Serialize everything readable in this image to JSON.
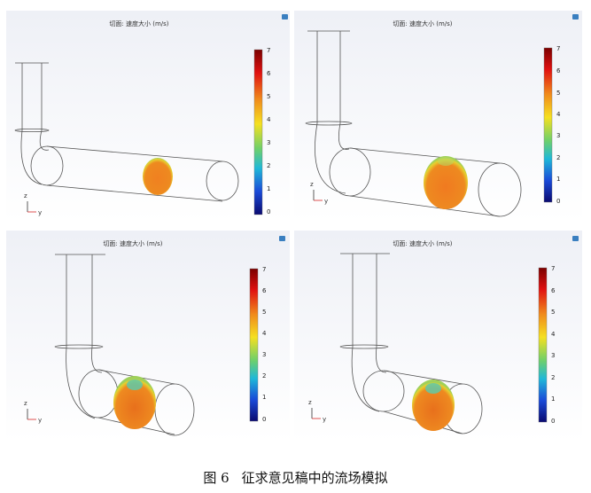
{
  "figure": {
    "caption_label": "图 6",
    "caption_text": "征求意见稿中的流场模拟"
  },
  "panels": [
    {
      "title": "切面: 速度大小 (m/s)",
      "colorbar_ticks": [
        "7",
        "6",
        "5",
        "4",
        "3",
        "2",
        "1",
        "0"
      ],
      "axis_z": "z",
      "axis_y": "y"
    },
    {
      "title": "切面: 速度大小 (m/s)",
      "colorbar_ticks": [
        "7",
        "6",
        "5",
        "4",
        "3",
        "2",
        "1",
        "0"
      ],
      "axis_z": "z",
      "axis_y": "y"
    },
    {
      "title": "切面: 速度大小 (m/s)",
      "colorbar_ticks": [
        "7",
        "6",
        "5",
        "4",
        "3",
        "2",
        "1",
        "0"
      ],
      "axis_z": "z",
      "axis_y": "y"
    },
    {
      "title": "切面: 速度大小 (m/s)",
      "colorbar_ticks": [
        "7",
        "6",
        "5",
        "4",
        "3",
        "2",
        "1",
        "0"
      ],
      "axis_z": "z",
      "axis_y": "y"
    }
  ],
  "colors": {
    "panel_bg_top": "#eef0f6",
    "panel_bg_bottom": "#ffffff",
    "pipe_stroke": "#555555",
    "slice_core": "#f08a1c",
    "slice_rim": "#9fd05a",
    "slice_top_spot": "#5fc9a8",
    "axis_y_color": "#d62728"
  }
}
